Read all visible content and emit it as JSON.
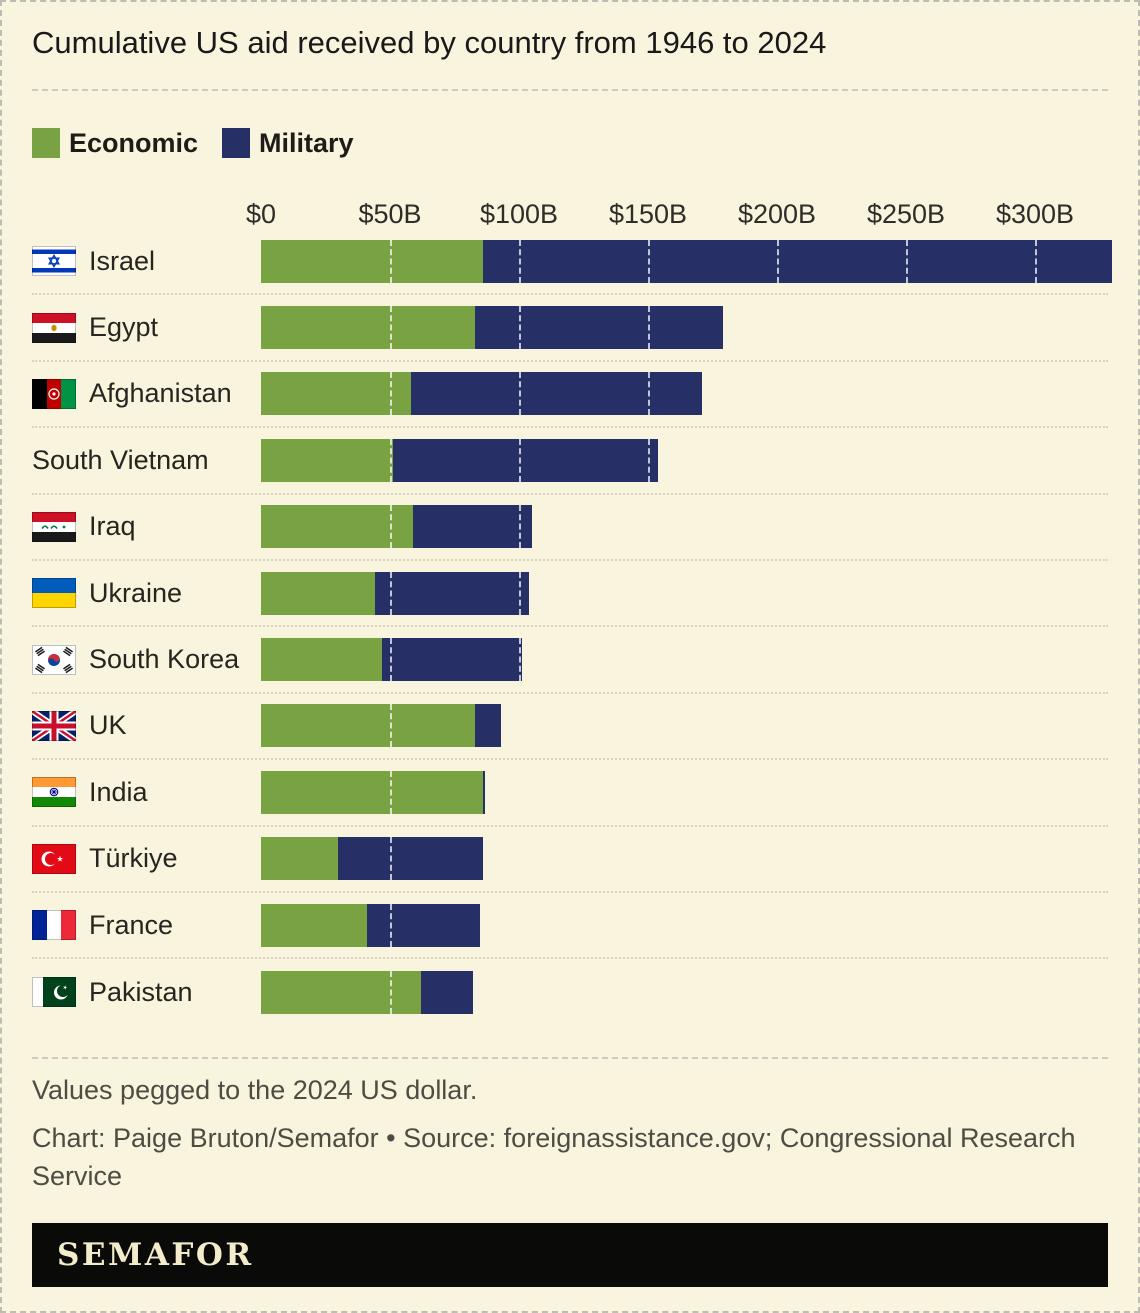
{
  "header": {
    "title": "Cumulative US aid received by country from 1946 to 2024"
  },
  "chart_data": {
    "type": "bar",
    "stacked": true,
    "orientation": "horizontal",
    "title": "Cumulative US aid received by country from 1946 to 2024",
    "categories": [
      "Israel",
      "Egypt",
      "Afghanistan",
      "South Vietnam",
      "Iraq",
      "Ukraine",
      "South Korea",
      "UK",
      "India",
      "Türkiye",
      "France",
      "Pakistan"
    ],
    "flags": [
      "israel",
      "egypt",
      "afghanistan",
      null,
      "iraq",
      "ukraine",
      "south-korea",
      "uk",
      "india",
      "turkiye",
      "france",
      "pakistan"
    ],
    "series": [
      {
        "name": "Economic",
        "color": "#79a343",
        "values": [
          86,
          83,
          58,
          51,
          59,
          44,
          47,
          83,
          86,
          30,
          41,
          62
        ]
      },
      {
        "name": "Military",
        "color": "#273066",
        "values": [
          244,
          96,
          113,
          103,
          46,
          60,
          54,
          10,
          1,
          56,
          44,
          20
        ]
      }
    ],
    "units": "billions of US dollars (2024 dollars)",
    "x_ticks": [
      {
        "label": "$0",
        "value": 0
      },
      {
        "label": "$50B",
        "value": 50
      },
      {
        "label": "$100B",
        "value": 100
      },
      {
        "label": "$150B",
        "value": 150
      },
      {
        "label": "$200B",
        "value": 200
      },
      {
        "label": "$250B",
        "value": 250
      },
      {
        "label": "$300B",
        "value": 300
      }
    ],
    "axis_max": 332,
    "grid": "white dashed tick lines drawn over bars only",
    "legend_position": "top-left"
  },
  "footer": {
    "note": "Values pegged to the 2024 US dollar.",
    "credit": "Chart: Paige Bruton/Semafor • Source: foreignassistance.gov; Congressional Research Service",
    "logo": "SEMAFOR"
  },
  "colors": {
    "background": "#f8f4de",
    "economic": "#79a343",
    "military": "#273066",
    "text": "#191919",
    "muted": "#4f4c44",
    "logo_bar": "#0a0a08",
    "logo_text": "#f2ecca"
  }
}
